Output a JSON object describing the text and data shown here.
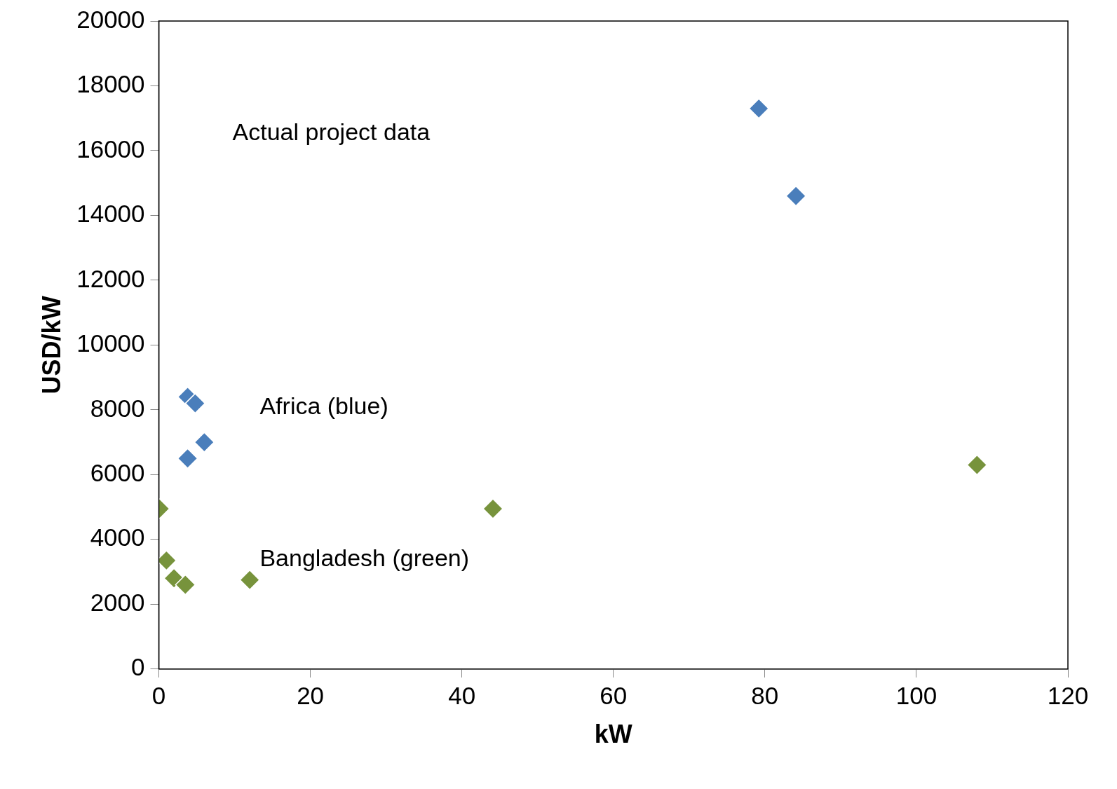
{
  "chart_data": {
    "type": "scatter",
    "xlabel": "kW",
    "ylabel": "USD/kW",
    "xlim": [
      0,
      120
    ],
    "xticks": [
      0,
      20,
      40,
      60,
      80,
      100,
      120
    ],
    "ylim": [
      0,
      20000
    ],
    "yticks": [
      0,
      2000,
      4000,
      6000,
      8000,
      10000,
      12000,
      14000,
      16000,
      18000,
      20000
    ],
    "grid": false,
    "legend": false,
    "marker": "diamond",
    "annotations": [
      "Actual project data"
    ],
    "series": [
      {
        "name": "Africa (blue)",
        "color": "#4a7ebb",
        "x": [
          3.8,
          4.8,
          6.0,
          3.8,
          79.2,
          84.1
        ],
        "values": [
          8400,
          8200,
          7000,
          6500,
          17300,
          14600
        ]
      },
      {
        "name": "Bangladesh (green)",
        "color": "#77933c",
        "x": [
          0.1,
          1.0,
          2.0,
          3.5,
          12.0,
          44.1,
          108.0
        ],
        "values": [
          4950,
          3350,
          2800,
          2600,
          2750,
          4950,
          6300
        ]
      }
    ]
  }
}
